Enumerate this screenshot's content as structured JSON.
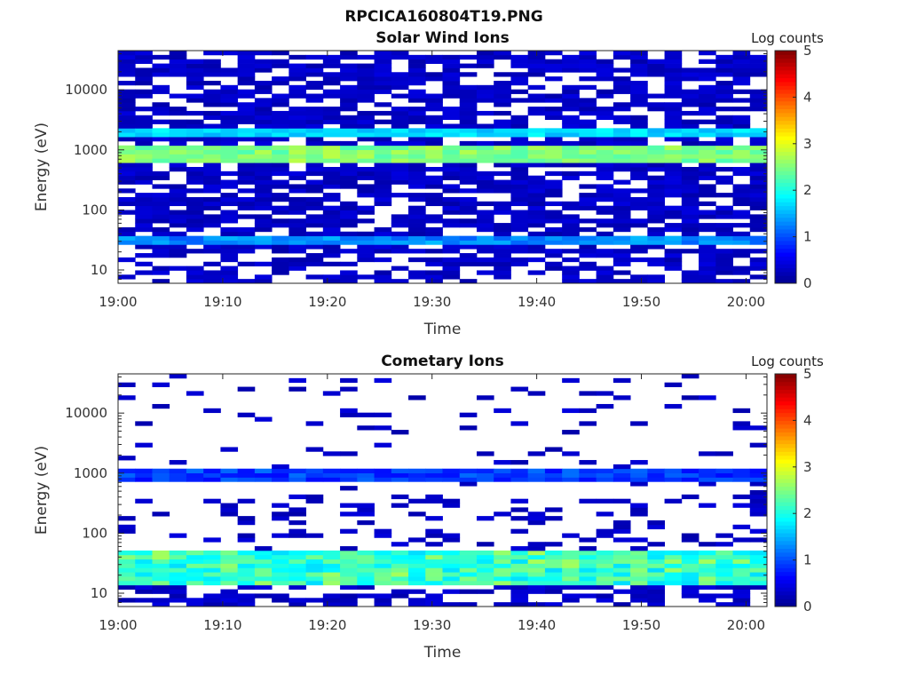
{
  "figure": {
    "title": "RPCICA160804T19.PNG"
  },
  "colors": {
    "no_data": "#ffffff",
    "axis": "#262626",
    "colormap": [
      "#00008f",
      "#0000ff",
      "#0080ff",
      "#00ffff",
      "#80ff80",
      "#ffff00",
      "#ff8000",
      "#ff0000",
      "#800000"
    ]
  },
  "chart_data": [
    {
      "type": "heatmap",
      "title": "Solar Wind Ions",
      "xlabel": "Time",
      "ylabel": "Energy (eV)",
      "x_ticks": [
        "19:00",
        "19:10",
        "19:20",
        "19:30",
        "19:40",
        "19:50",
        "20:00"
      ],
      "x_range": [
        "19:00",
        "20:02"
      ],
      "y_scale": "log",
      "y_ticks": [
        "10",
        "100",
        "1000",
        "10000"
      ],
      "y_range": [
        6,
        45000
      ],
      "colorbar": {
        "label": "Log counts",
        "range": [
          0,
          5
        ],
        "ticks": [
          "0",
          "1",
          "2",
          "3",
          "4",
          "5"
        ]
      },
      "bands": [
        {
          "energy_range": [
            25,
            38
          ],
          "log_counts_range": [
            0.8,
            1.6
          ]
        },
        {
          "energy_range": [
            650,
            1200
          ],
          "log_counts_range": [
            2.0,
            2.8
          ]
        },
        {
          "energy_range": [
            1600,
            2300
          ],
          "log_counts_range": [
            1.3,
            1.9
          ]
        }
      ],
      "background_log_counts": 0.3
    },
    {
      "type": "heatmap",
      "title": "Cometary Ions",
      "xlabel": "Time",
      "ylabel": "Energy (eV)",
      "x_ticks": [
        "19:00",
        "19:10",
        "19:20",
        "19:30",
        "19:40",
        "19:50",
        "20:00"
      ],
      "x_range": [
        "19:00",
        "20:02"
      ],
      "y_scale": "log",
      "y_ticks": [
        "10",
        "100",
        "1000",
        "10000"
      ],
      "y_range": [
        6,
        45000
      ],
      "colorbar": {
        "label": "Log counts",
        "range": [
          0,
          5
        ],
        "ticks": [
          "0",
          "1",
          "2",
          "3",
          "4",
          "5"
        ]
      },
      "bands": [
        {
          "energy_range": [
            14,
            50
          ],
          "log_counts_range": [
            1.3,
            2.7
          ]
        },
        {
          "energy_range": [
            700,
            1200
          ],
          "log_counts_range": [
            0.4,
            1.2
          ]
        }
      ],
      "background_log_counts": 0.3
    }
  ]
}
